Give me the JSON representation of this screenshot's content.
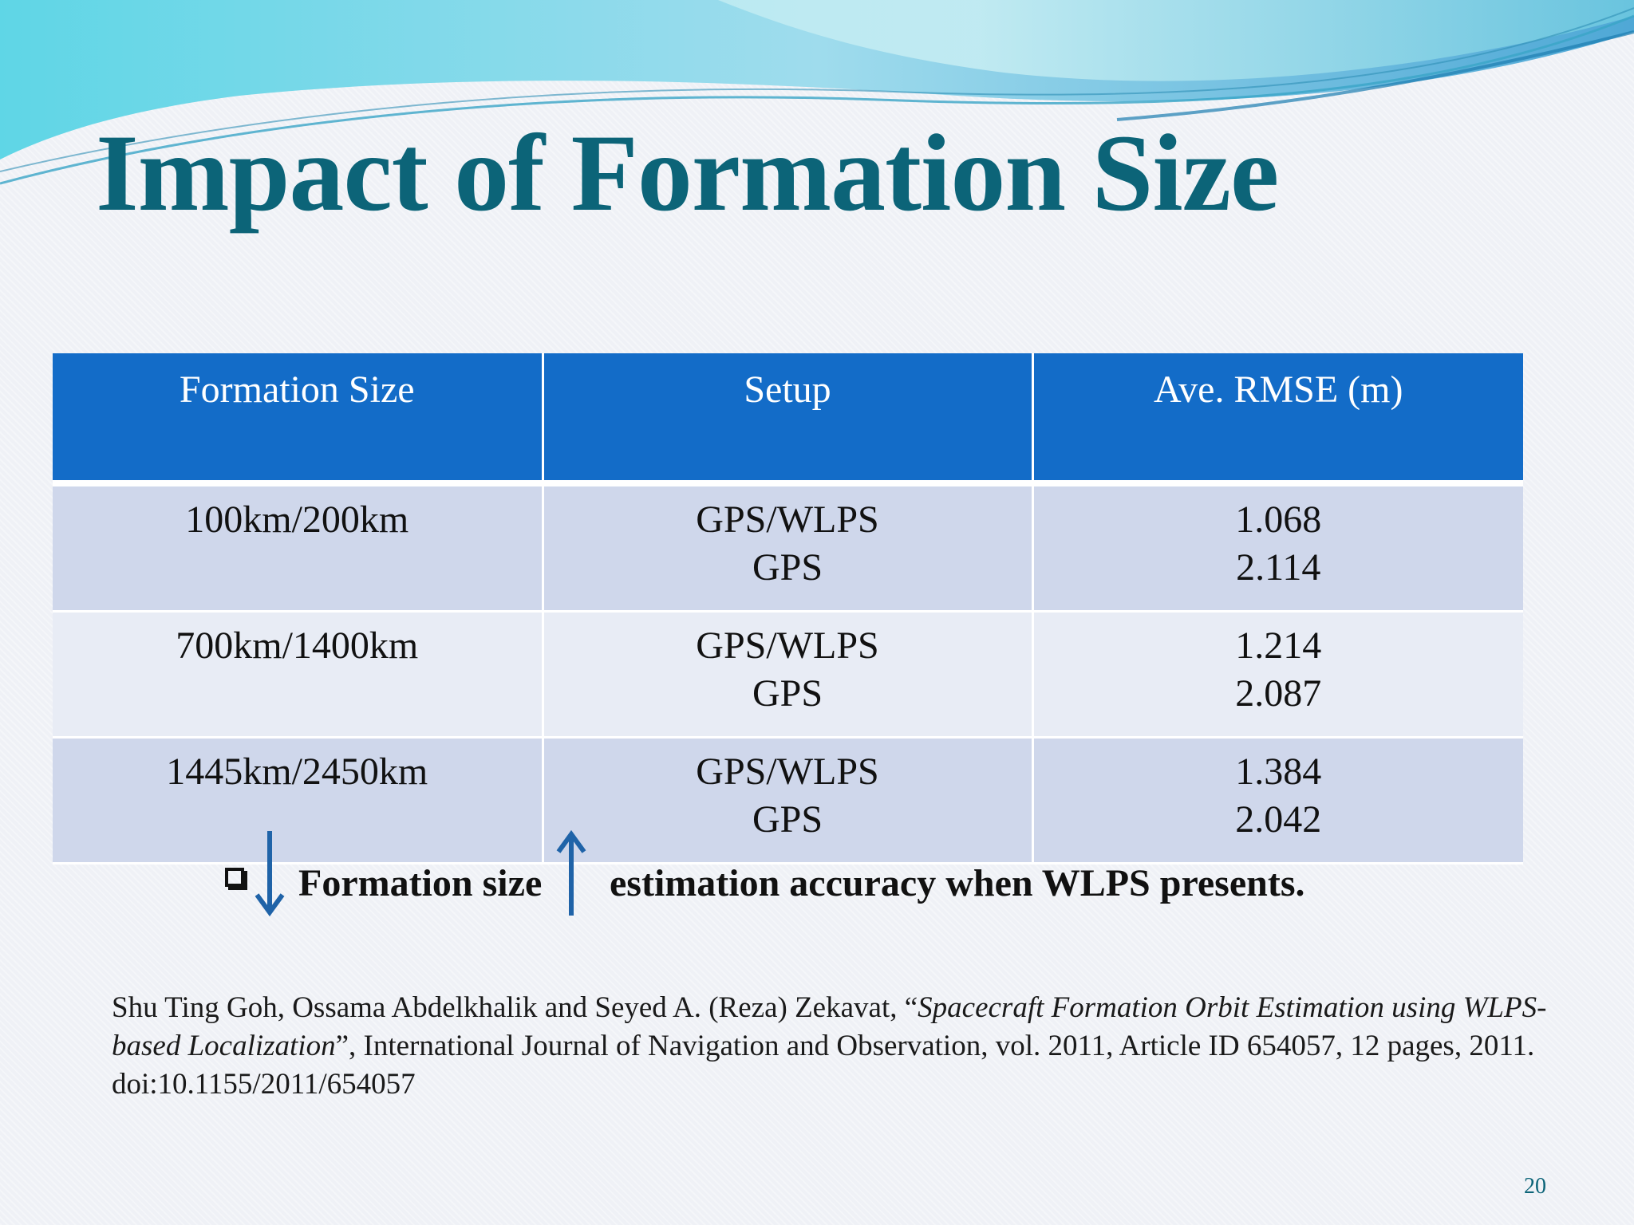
{
  "slide": {
    "title": "Impact of Formation Size",
    "page_number": "20"
  },
  "table": {
    "headers": [
      "Formation Size",
      "Setup",
      "Ave. RMSE (m)"
    ],
    "rows": [
      {
        "size": "100km/200km",
        "setup": [
          "GPS/WLPS",
          "GPS"
        ],
        "rmse": [
          "1.068",
          "2.114"
        ]
      },
      {
        "size": "700km/1400km",
        "setup": [
          "GPS/WLPS",
          "GPS"
        ],
        "rmse": [
          "1.214",
          "2.087"
        ]
      },
      {
        "size": "1445km/2450km",
        "setup": [
          "GPS/WLPS",
          "GPS"
        ],
        "rmse": [
          "1.384",
          "2.042"
        ]
      }
    ]
  },
  "note": {
    "bullet_icon": "checkbox-bullet-icon",
    "left_arrow_icon": "arrow-down-icon",
    "right_arrow_icon": "arrow-up-icon",
    "part1": "Formation size",
    "part2": "estimation accuracy when WLPS presents."
  },
  "citation": {
    "authors": "Shu Ting Goh, Ossama Abdelkhalik and Seyed A. (Reza) Zekavat, “",
    "paper_title": "Spacecraft Formation Orbit Estimation using WLPS-based Localization",
    "rest": "”, International Journal of Navigation and Observation, vol. 2011, Article ID 654057, 12 pages, 2011. doi:10.1155/2011/654057"
  },
  "colors": {
    "title": "#0c6478",
    "header_bg": "#136cc8",
    "row_odd": "#cfd7eb",
    "row_even": "#e8ecf5",
    "arrow": "#1f63a8"
  }
}
